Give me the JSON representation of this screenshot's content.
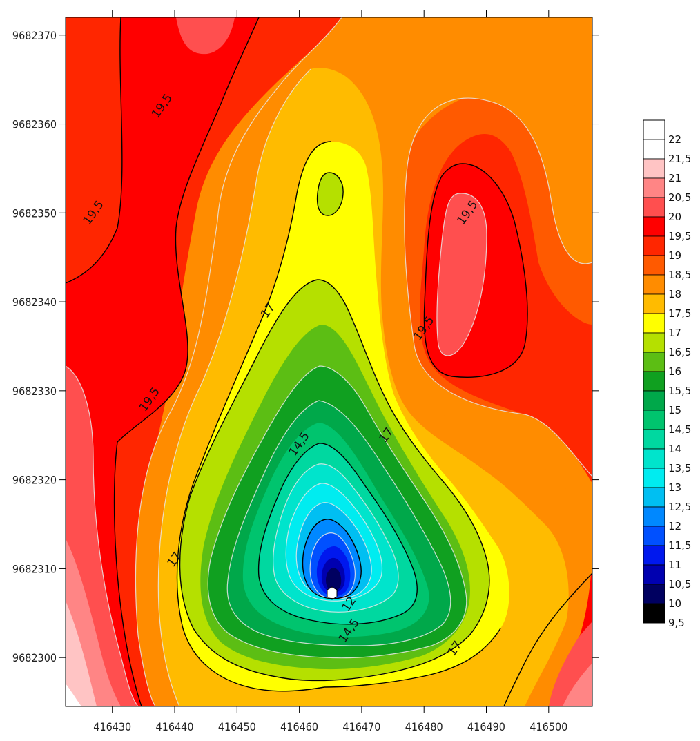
{
  "chart_data": {
    "type": "contour",
    "x_ticks": [
      "416430",
      "416440",
      "416450",
      "416460",
      "416470",
      "416480",
      "416490",
      "416500"
    ],
    "y_ticks": [
      "9682370",
      "9682360",
      "9682350",
      "9682340",
      "9682330",
      "9682320",
      "9682310",
      "9682300"
    ],
    "xlim": [
      416422.5,
      416507
    ],
    "ylim": [
      9682294.5,
      9682372
    ],
    "grid": false,
    "legend_placement": "right",
    "legend_levels": [
      "22",
      "21,5",
      "21",
      "20,5",
      "20",
      "19,5",
      "19",
      "18,5",
      "18",
      "17,5",
      "17",
      "16,5",
      "16",
      "15,5",
      "15",
      "14,5",
      "14",
      "13,5",
      "13",
      "12,5",
      "12",
      "11,5",
      "11",
      "10,5",
      "10",
      "9,5"
    ],
    "level_colors": [
      "#ffffff",
      "#ffffff",
      "#ffc4c4",
      "#ff8585",
      "#ff4f4f",
      "#ff0000",
      "#ff2600",
      "#ff5a00",
      "#ff8c00",
      "#ffbb00",
      "#ffff00",
      "#b5e000",
      "#5cbe14",
      "#10a020",
      "#00a84a",
      "#00c46e",
      "#00d8a0",
      "#00e4cc",
      "#00ecf0",
      "#00bff2",
      "#0088ff",
      "#0050ff",
      "#0018ee",
      "#0000b0",
      "#000060",
      "#000000"
    ],
    "contour_labels": [
      {
        "text": "19,5",
        "x": 416427,
        "y": 9682350
      },
      {
        "text": "19,5",
        "x": 416438,
        "y": 9682362
      },
      {
        "text": "19,5",
        "x": 416436,
        "y": 9682329
      },
      {
        "text": "19,5",
        "x": 416487,
        "y": 9682350
      },
      {
        "text": "19,5",
        "x": 416480,
        "y": 9682337
      },
      {
        "text": "17",
        "x": 416455,
        "y": 9682339
      },
      {
        "text": "17",
        "x": 416440,
        "y": 9682311
      },
      {
        "text": "17",
        "x": 416474,
        "y": 9682325
      },
      {
        "text": "17",
        "x": 416485,
        "y": 9682301
      },
      {
        "text": "14,5",
        "x": 416460,
        "y": 9682324
      },
      {
        "text": "14,5",
        "x": 416468,
        "y": 9682303
      },
      {
        "text": "12",
        "x": 416468,
        "y": 9682306
      }
    ]
  }
}
